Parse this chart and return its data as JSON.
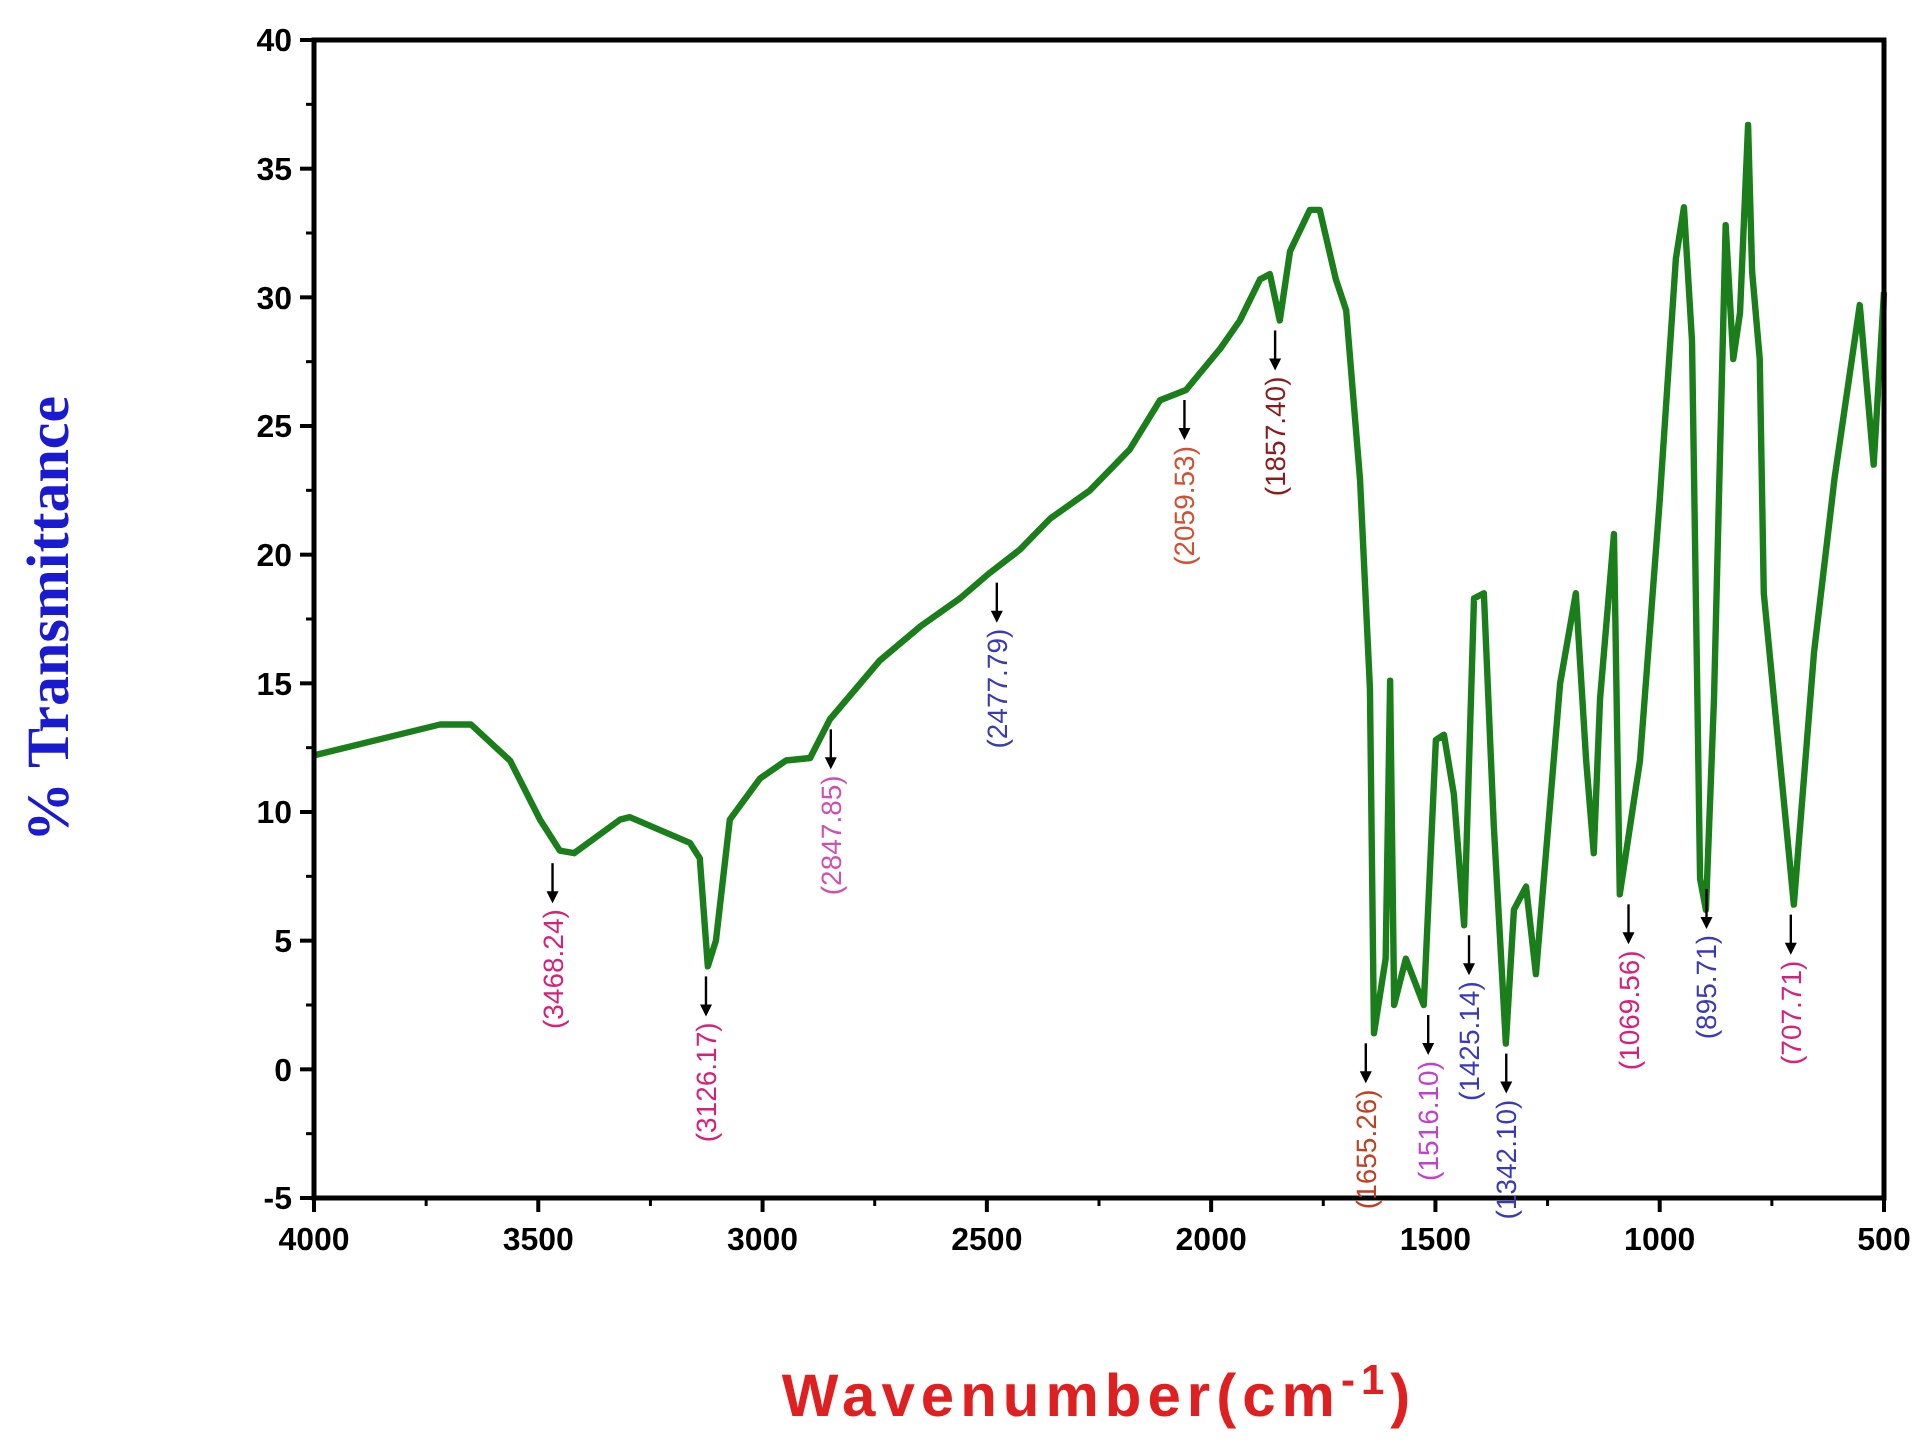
{
  "chart_data": {
    "type": "line",
    "xlabel": "Wavenumber(cm$^{-1}$)",
    "ylabel": "% Transmittance",
    "xlim": [
      4000,
      500
    ],
    "xticks": [
      4000,
      3500,
      3000,
      2500,
      2000,
      1500,
      1000,
      500
    ],
    "ylim": [
      -5,
      40
    ],
    "yticks": [
      -5,
      0,
      5,
      10,
      15,
      20,
      25,
      30,
      35,
      40
    ],
    "grid": false,
    "line_style": "solid",
    "series": [
      {
        "color": "#1a7f1a",
        "x": [
          4000,
          3719,
          3650,
          3563,
          3496,
          3452,
          3420,
          3318,
          3296,
          3162,
          3140,
          3122,
          3104,
          3073,
          3006,
          2948,
          2894,
          2850,
          2738,
          2649,
          2560,
          2493,
          2426,
          2359,
          2270,
          2181,
          2114,
          2056,
          1980,
          1936,
          1891,
          1869,
          1847,
          1824,
          1780,
          1758,
          1722,
          1699,
          1668,
          1646,
          1637,
          1611,
          1601,
          1592,
          1566,
          1526,
          1499,
          1481,
          1459,
          1436,
          1414,
          1392,
          1370,
          1343,
          1325,
          1298,
          1276,
          1222,
          1187,
          1164,
          1147,
          1133,
          1102,
          1089,
          1044,
          1000,
          964,
          946,
          928,
          910,
          897,
          879,
          853,
          836,
          821,
          803,
          794,
          777,
          768,
          701,
          656,
          610,
          554,
          523,
          500
        ],
        "values": [
          12.2,
          13.4,
          13.4,
          12.0,
          9.7,
          8.5,
          8.4,
          9.7,
          9.8,
          8.8,
          8.2,
          4.0,
          5.0,
          9.7,
          11.3,
          12.0,
          12.1,
          13.6,
          15.9,
          17.2,
          18.3,
          19.3,
          20.2,
          21.4,
          22.5,
          24.1,
          26.0,
          26.4,
          28.0,
          29.1,
          30.7,
          30.9,
          29.1,
          31.8,
          33.4,
          33.4,
          30.7,
          29.5,
          22.9,
          14.8,
          1.4,
          4.3,
          15.1,
          2.5,
          4.3,
          2.5,
          12.8,
          13.0,
          10.7,
          5.6,
          18.3,
          18.5,
          9.5,
          1.0,
          6.2,
          7.1,
          3.7,
          15.0,
          18.5,
          12.0,
          8.4,
          14.4,
          20.8,
          6.8,
          12.0,
          22.1,
          31.5,
          33.5,
          28.3,
          7.4,
          6.2,
          14.4,
          32.8,
          27.6,
          29.4,
          36.7,
          31.0,
          27.6,
          18.5,
          6.4,
          16.2,
          23.0,
          29.7,
          23.5,
          30.2
        ]
      }
    ],
    "annotations": [
      {
        "text": "(3468.24)",
        "x": 3468.24,
        "y": 8.4
      },
      {
        "text": "(3126.17)",
        "x": 3126.17,
        "y": 4.0
      },
      {
        "text": "(2847.85)",
        "x": 2847.85,
        "y": 13.6
      },
      {
        "text": "(2477.79)",
        "x": 2477.79,
        "y": 19.3
      },
      {
        "text": "(2059.53)",
        "x": 2059.53,
        "y": 26.4
      },
      {
        "text": "(1857.40)",
        "x": 1857.4,
        "y": 29.1
      },
      {
        "text": "(1655.26)",
        "x": 1655.26,
        "y": 1.4
      },
      {
        "text": "(1516.10)",
        "x": 1516.1,
        "y": 2.5
      },
      {
        "text": "(1425.14)",
        "x": 1425.14,
        "y": 5.6
      },
      {
        "text": "(1342.10)",
        "x": 1342.1,
        "y": 1.0
      },
      {
        "text": "(1069.56)",
        "x": 1069.56,
        "y": 6.8
      },
      {
        "text": "(895.71)",
        "x": 895.71,
        "y": 7.4
      },
      {
        "text": "(707.71)",
        "x": 707.71,
        "y": 6.4
      }
    ]
  }
}
